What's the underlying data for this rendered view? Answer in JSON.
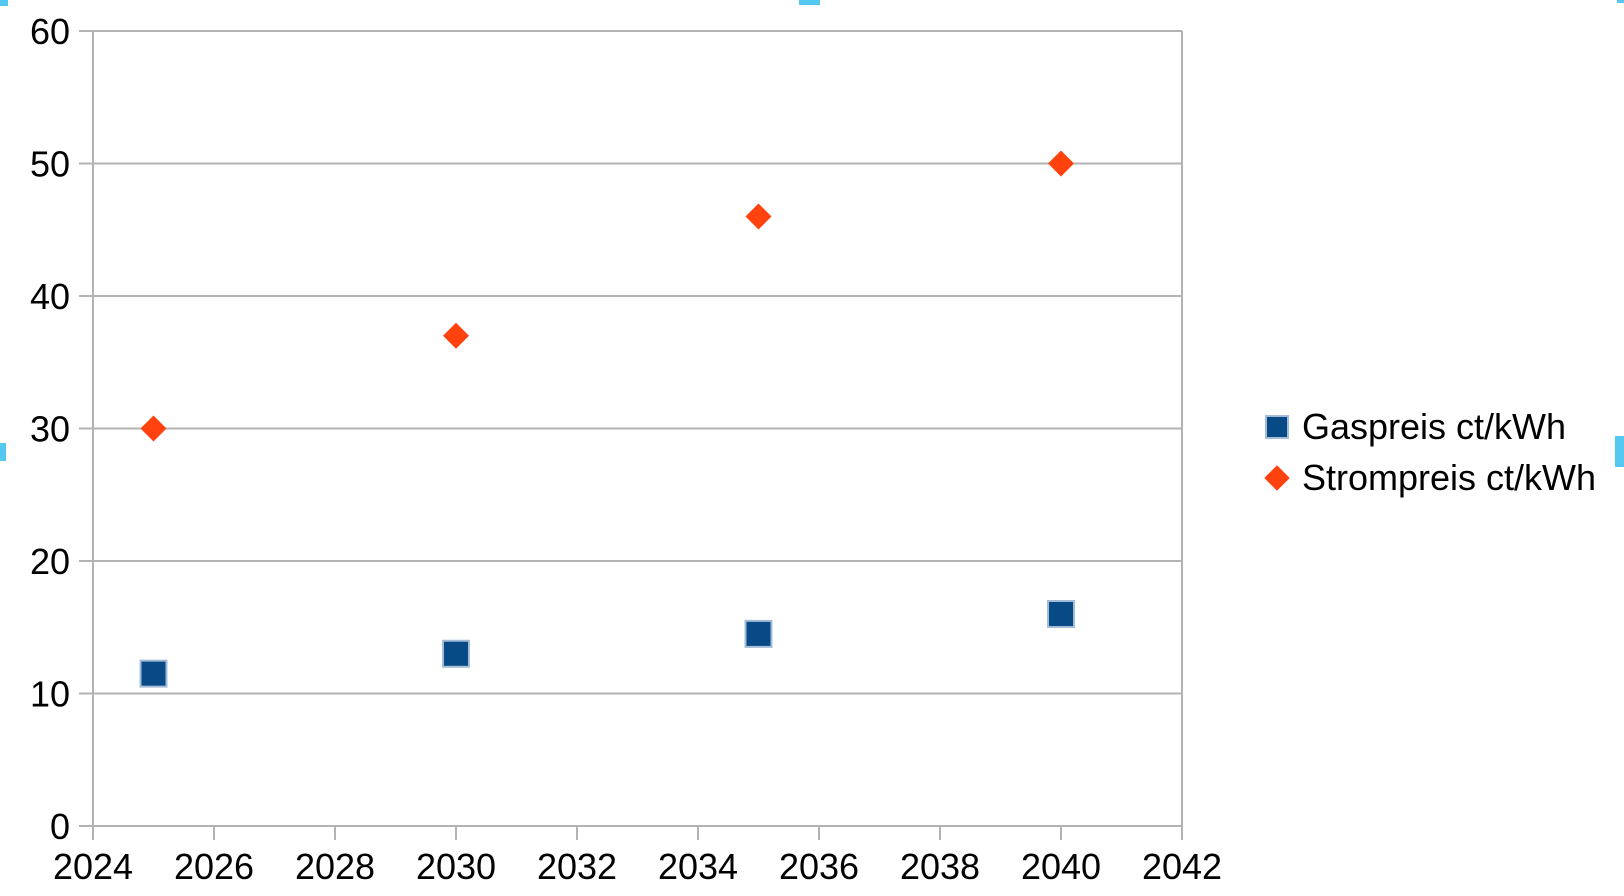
{
  "chart_data": {
    "type": "scatter",
    "x": [
      2025,
      2030,
      2035,
      2040
    ],
    "series": [
      {
        "name": "Gaspreis ct/kWh",
        "marker": "square",
        "color": "#084a86",
        "border_color": "#a3bdd9",
        "values": [
          11.5,
          13,
          14.5,
          16
        ]
      },
      {
        "name": "Strompreis ct/kWh",
        "marker": "diamond",
        "color": "#ff420e",
        "values": [
          30,
          37,
          46,
          50
        ]
      }
    ],
    "xlim": [
      2024,
      2042
    ],
    "ylim": [
      0,
      60
    ],
    "x_tick_step": 2,
    "y_tick_step": 10,
    "x_ticks": [
      "2024",
      "2026",
      "2028",
      "2030",
      "2032",
      "2034",
      "2036",
      "2038",
      "2040",
      "2042"
    ],
    "y_ticks": [
      "0",
      "10",
      "20",
      "30",
      "40",
      "50",
      "60"
    ],
    "grid": "horizontal",
    "grid_color": "#b3b3b3",
    "axis_color": "#b3b3b3",
    "text_color": "#000000",
    "legend_position": "right",
    "title": "",
    "xlabel": "",
    "ylabel": ""
  },
  "selection": {
    "handle_color": "#54c8f0",
    "state": "chart-object-selected"
  }
}
